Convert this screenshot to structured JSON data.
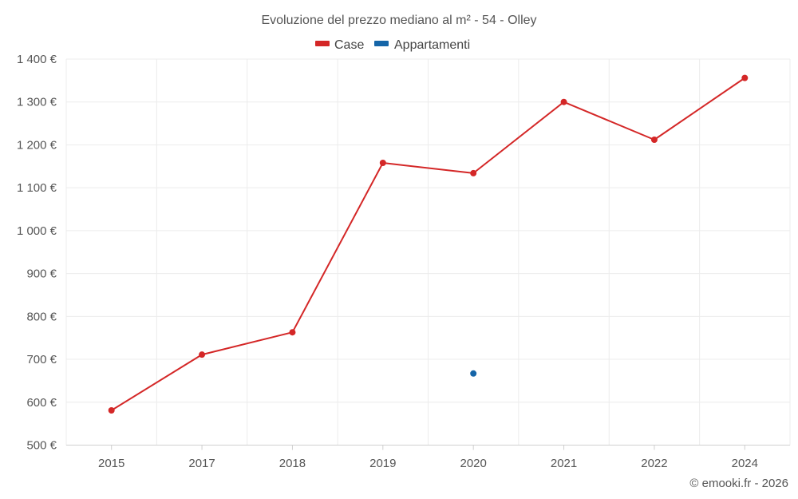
{
  "chart_data": {
    "type": "line",
    "title": "Evoluzione del prezzo mediano al m² - 54 - Olley",
    "categories": [
      "2015",
      "2017",
      "2018",
      "2019",
      "2020",
      "2021",
      "2022",
      "2024"
    ],
    "y_ticks": [
      "500 €",
      "600 €",
      "700 €",
      "800 €",
      "900 €",
      "1 000 €",
      "1 100 €",
      "1 200 €",
      "1 300 €",
      "1 400 €"
    ],
    "ylim": [
      500,
      1400
    ],
    "xlabel": "",
    "ylabel": "",
    "grid": true,
    "legend_position": "top-center",
    "series": [
      {
        "name": "Case",
        "color": "#d42727",
        "values": [
          581,
          711,
          763,
          1158,
          1134,
          1300,
          1212,
          1356
        ]
      },
      {
        "name": "Appartamenti",
        "color": "#1565a8",
        "values": [
          null,
          null,
          null,
          null,
          667,
          null,
          null,
          null
        ]
      }
    ]
  },
  "credit": "© emooki.fr - 2026"
}
